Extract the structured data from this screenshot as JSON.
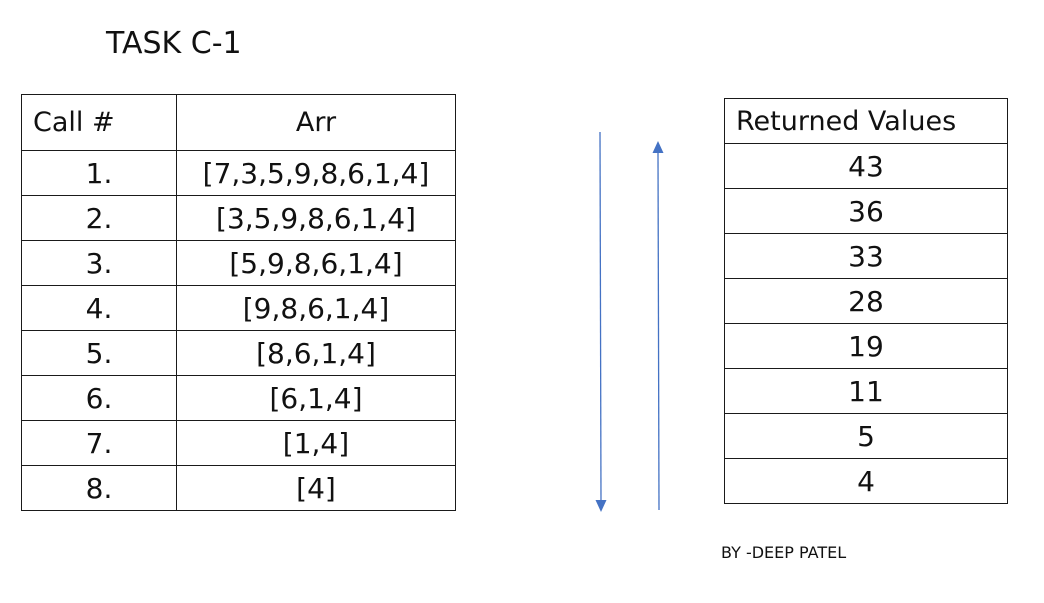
{
  "title": "TASK C-1",
  "calls_table": {
    "headers": [
      "Call #",
      "Arr"
    ],
    "rows": [
      {
        "call": "1.",
        "arr": "[7,3,5,9,8,6,1,4]"
      },
      {
        "call": "2.",
        "arr": "[3,5,9,8,6,1,4]"
      },
      {
        "call": "3.",
        "arr": "[5,9,8,6,1,4]"
      },
      {
        "call": "4.",
        "arr": "[9,8,6,1,4]"
      },
      {
        "call": "5.",
        "arr": "[8,6,1,4]"
      },
      {
        "call": "6.",
        "arr": "[6,1,4]"
      },
      {
        "call": "7.",
        "arr": "[1,4]"
      },
      {
        "call": "8.",
        "arr": "[4]"
      }
    ]
  },
  "returns_table": {
    "header": "Returned Values",
    "values": [
      "43",
      "36",
      "33",
      "28",
      "19",
      "11",
      "5",
      "4"
    ]
  },
  "arrows": {
    "color": "#4472c4",
    "down_arrow": "call direction",
    "up_arrow": "return direction"
  },
  "credit": "BY -DEEP PATEL"
}
